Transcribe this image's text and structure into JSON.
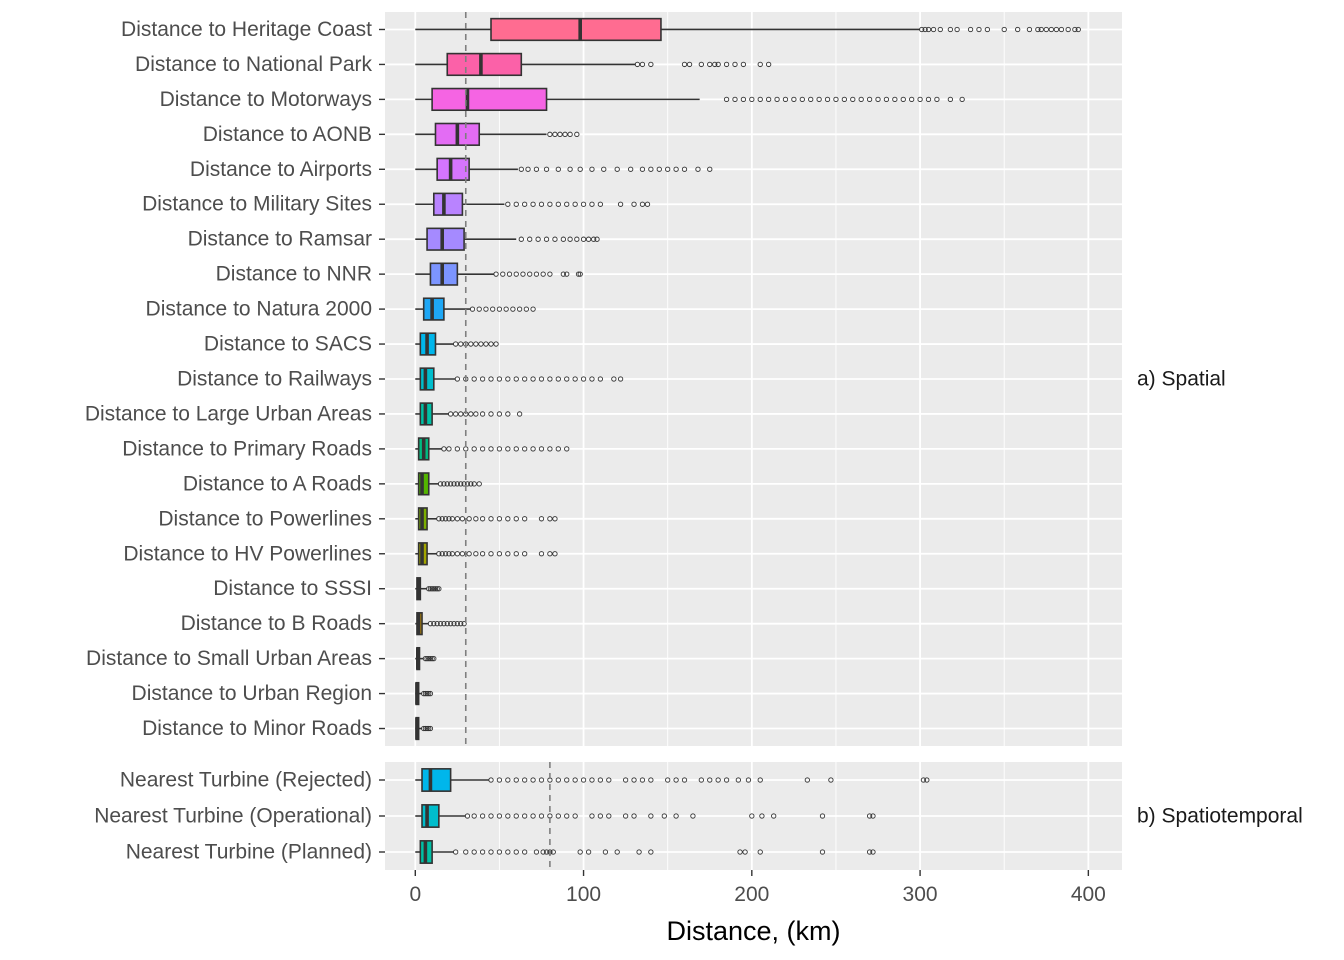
{
  "chart_data": {
    "type": "boxplot",
    "xlabel": "Distance, (km)",
    "xlim": [
      -18,
      420
    ],
    "x_ticks": [
      0,
      100,
      200,
      300,
      400
    ],
    "grid": true,
    "orientation": "horizontal",
    "panels": [
      {
        "label": "a) Spatial",
        "reference_line": 30,
        "categories": [
          {
            "label": "Distance to Heritage Coast",
            "color": "#FF6C91",
            "min": 0,
            "q1": 45,
            "median": 98,
            "q3": 146,
            "max": 300,
            "outliers": [
              301,
              303,
              305,
              308,
              312,
              318,
              322,
              330,
              335,
              340,
              350,
              358,
              365,
              370,
              372,
              375,
              378,
              381,
              384,
              388,
              392,
              394
            ]
          },
          {
            "label": "Distance to National Park",
            "color": "#FB61A8",
            "min": 0,
            "q1": 19,
            "median": 39,
            "q3": 63,
            "max": 131,
            "outliers": [
              132,
              135,
              140,
              160,
              163,
              170,
              175,
              178,
              180,
              185,
              190,
              195,
              205,
              210
            ]
          },
          {
            "label": "Distance to Motorways",
            "color": "#F564E3",
            "min": 0,
            "q1": 10,
            "median": 31,
            "q3": 78,
            "max": 169,
            "outliers": [
              185,
              190,
              195,
              200,
              205,
              210,
              215,
              220,
              225,
              230,
              235,
              240,
              245,
              250,
              255,
              260,
              265,
              270,
              275,
              280,
              285,
              290,
              295,
              300,
              305,
              310,
              318,
              325
            ]
          },
          {
            "label": "Distance to AONB",
            "color": "#E36CF4",
            "min": 0,
            "q1": 12,
            "median": 25,
            "q3": 38,
            "max": 78,
            "outliers": [
              80,
              83,
              86,
              89,
              92,
              96
            ]
          },
          {
            "label": "Distance to Airports",
            "color": "#D575FE",
            "min": 0,
            "q1": 13,
            "median": 21,
            "q3": 32,
            "max": 61,
            "outliers": [
              63,
              67,
              72,
              78,
              85,
              92,
              98,
              105,
              112,
              120,
              128,
              135,
              140,
              145,
              150,
              155,
              160,
              168,
              175
            ]
          },
          {
            "label": "Distance to Military Sites",
            "color": "#B983FF",
            "min": 0,
            "q1": 11,
            "median": 17,
            "q3": 28,
            "max": 53,
            "outliers": [
              55,
              60,
              65,
              70,
              75,
              80,
              85,
              90,
              95,
              100,
              105,
              110,
              122,
              130,
              135,
              138
            ]
          },
          {
            "label": "Distance to Ramsar",
            "color": "#A58AFF",
            "min": 0,
            "q1": 7,
            "median": 16,
            "q3": 29,
            "max": 60,
            "outliers": [
              63,
              68,
              73,
              78,
              83,
              88,
              92,
              96,
              100,
              103,
              106,
              108
            ]
          },
          {
            "label": "Distance to NNR",
            "color": "#7C95FF",
            "min": 0,
            "q1": 9,
            "median": 16,
            "q3": 25,
            "max": 47,
            "outliers": [
              48,
              52,
              56,
              60,
              64,
              68,
              72,
              76,
              80,
              88,
              90,
              97,
              98
            ]
          },
          {
            "label": "Distance to Natura 2000",
            "color": "#1EA7F5",
            "min": 0,
            "q1": 5,
            "median": 10,
            "q3": 17,
            "max": 33,
            "outliers": [
              34,
              38,
              42,
              46,
              50,
              54,
              58,
              62,
              66,
              70
            ]
          },
          {
            "label": "Distance to SACS",
            "color": "#00B6EB",
            "min": 0,
            "q1": 3,
            "median": 7,
            "q3": 12,
            "max": 23,
            "outliers": [
              24,
              27,
              30,
              33,
              36,
              39,
              42,
              45,
              48
            ]
          },
          {
            "label": "Distance to Railways",
            "color": "#00BDCC",
            "min": 0,
            "q1": 3,
            "median": 6,
            "q3": 11,
            "max": 24,
            "outliers": [
              25,
              30,
              35,
              40,
              45,
              50,
              55,
              60,
              65,
              70,
              75,
              80,
              85,
              90,
              95,
              100,
              105,
              110,
              118,
              122
            ]
          },
          {
            "label": "Distance to  Large Urban Areas",
            "color": "#00C0A5",
            "min": 0,
            "q1": 3,
            "median": 6,
            "q3": 10,
            "max": 20,
            "outliers": [
              21,
              24,
              27,
              30,
              33,
              36,
              40,
              45,
              50,
              55,
              62
            ]
          },
          {
            "label": "Distance to Primary Roads",
            "color": "#00BC81",
            "min": 0,
            "q1": 2,
            "median": 5,
            "q3": 8,
            "max": 16,
            "outliers": [
              17,
              20,
              25,
              30,
              35,
              40,
              45,
              50,
              55,
              60,
              65,
              70,
              75,
              80,
              85,
              90
            ]
          },
          {
            "label": "Distance to A Roads",
            "color": "#53B400",
            "min": 0,
            "q1": 2,
            "median": 4,
            "q3": 8,
            "max": 14,
            "outliers": [
              15,
              17,
              19,
              21,
              23,
              25,
              27,
              29,
              31,
              33,
              35,
              38
            ]
          },
          {
            "label": "Distance to Powerlines",
            "color": "#7CAE00",
            "min": 0,
            "q1": 2,
            "median": 4,
            "q3": 7,
            "max": 13,
            "outliers": [
              14,
              16,
              18,
              20,
              22,
              25,
              28,
              32,
              36,
              40,
              45,
              50,
              55,
              60,
              65,
              75,
              80,
              83
            ]
          },
          {
            "label": "Distance to HV Powerlines",
            "color": "#A3A500",
            "min": 0,
            "q1": 2,
            "median": 4,
            "q3": 7,
            "max": 13,
            "outliers": [
              14,
              16,
              18,
              20,
              22,
              25,
              28,
              32,
              36,
              40,
              45,
              50,
              55,
              60,
              65,
              75,
              80,
              83
            ]
          },
          {
            "label": "Distance to SSSI",
            "color": "#BB9D00",
            "min": 0,
            "q1": 1,
            "median": 2,
            "q3": 3,
            "max": 7,
            "outliers": [
              8,
              9,
              10,
              11,
              12,
              13,
              14
            ]
          },
          {
            "label": "Distance to B Roads",
            "color": "#CD9600",
            "min": 0,
            "q1": 1,
            "median": 2,
            "q3": 4,
            "max": 8,
            "outliers": [
              9,
              11,
              13,
              15,
              17,
              19,
              21,
              23,
              25,
              27,
              29
            ]
          },
          {
            "label": "Distance to Small Urban Areas",
            "color": "#DE8C00",
            "min": 0,
            "q1": 1,
            "median": 1.5,
            "q3": 2.5,
            "max": 5,
            "outliers": [
              6,
              7,
              8,
              9,
              10,
              11
            ]
          },
          {
            "label": "Distance to  Urban Region",
            "color": "#EA8331",
            "min": 0,
            "q1": 0.5,
            "median": 1,
            "q3": 2,
            "max": 4,
            "outliers": [
              5,
              6,
              7,
              8,
              9
            ]
          },
          {
            "label": "Distance to Minor Roads",
            "color": "#F8766D",
            "min": 0,
            "q1": 0.5,
            "median": 1,
            "q3": 2,
            "max": 4,
            "outliers": [
              5,
              6,
              7,
              8,
              9
            ]
          }
        ]
      },
      {
        "label": "b) Spatiotemporal",
        "reference_line": 80,
        "categories": [
          {
            "label": "Nearest Turbine (Rejected)",
            "color": "#00B6EB",
            "min": 0,
            "q1": 4,
            "median": 9,
            "q3": 21,
            "max": 44,
            "outliers": [
              45,
              50,
              55,
              60,
              65,
              70,
              75,
              80,
              85,
              90,
              95,
              100,
              105,
              110,
              115,
              125,
              130,
              135,
              140,
              150,
              155,
              160,
              170,
              175,
              180,
              185,
              192,
              198,
              205,
              233,
              247,
              302,
              304
            ]
          },
          {
            "label": "Nearest Turbine (Operational)",
            "color": "#00BDCC",
            "min": 0,
            "q1": 4,
            "median": 7,
            "q3": 14,
            "max": 30,
            "outliers": [
              31,
              35,
              40,
              45,
              50,
              55,
              60,
              65,
              70,
              75,
              80,
              85,
              90,
              95,
              105,
              110,
              115,
              125,
              130,
              140,
              148,
              155,
              165,
              200,
              206,
              213,
              242,
              270,
              272
            ]
          },
          {
            "label": "Nearest Turbine (Planned)",
            "color": "#00C0A5",
            "min": 0,
            "q1": 3,
            "median": 6,
            "q3": 10,
            "max": 23,
            "outliers": [
              24,
              30,
              35,
              40,
              45,
              50,
              55,
              60,
              65,
              72,
              76,
              78,
              80,
              82,
              98,
              103,
              113,
              120,
              133,
              140,
              193,
              196,
              205,
              242,
              270,
              272
            ]
          }
        ]
      }
    ]
  }
}
